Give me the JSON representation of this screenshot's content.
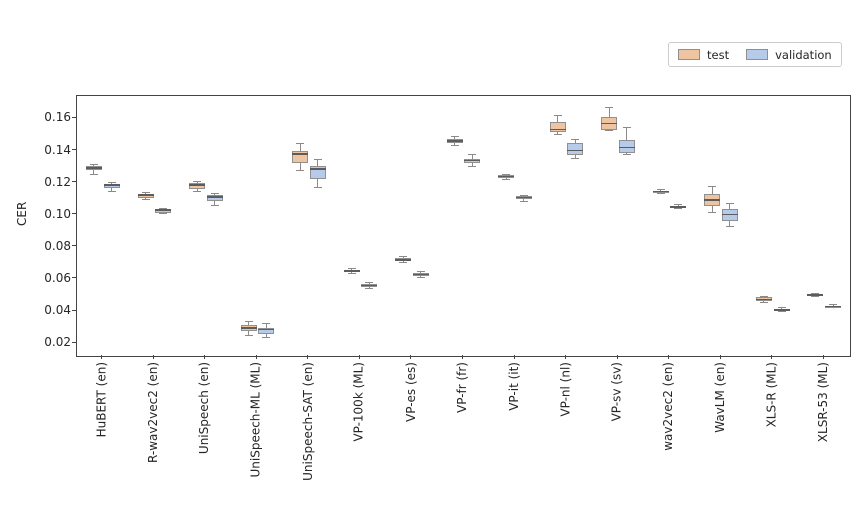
{
  "legend": {
    "items": [
      {
        "label": "test",
        "color": "#efc4a1"
      },
      {
        "label": "validation",
        "color": "#b6cbe9"
      }
    ]
  },
  "chart_data": {
    "type": "boxplot",
    "title": "",
    "xlabel": "",
    "ylabel": "CER",
    "ylim": [
      0.012,
      0.174
    ],
    "yticks": [
      0.02,
      0.04,
      0.06,
      0.08,
      0.1,
      0.12,
      0.14,
      0.16
    ],
    "grid": false,
    "legend_position": "upper right",
    "box_stats_order": [
      "whisker_low",
      "q1",
      "median",
      "q3",
      "whisker_high"
    ],
    "categories": [
      "HuBERT (en)",
      "R-wav2vec2 (en)",
      "UniSpeech (en)",
      "UniSpeech-ML (ML)",
      "UniSpeech-SAT (en)",
      "VP-100k (ML)",
      "VP-es (es)",
      "VP-fr (fr)",
      "VP-it (it)",
      "VP-nl (nl)",
      "VP-sv (sv)",
      "wav2vec2 (en)",
      "WavLM (en)",
      "XLS-R (ML)",
      "XLSR-53 (ML)"
    ],
    "series": [
      {
        "name": "test",
        "color": "#efc4a1",
        "boxes": [
          [
            0.125,
            0.128,
            0.1291,
            0.1302,
            0.1312
          ],
          [
            0.1095,
            0.1105,
            0.1123,
            0.1131,
            0.1137
          ],
          [
            0.1145,
            0.1163,
            0.1186,
            0.1197,
            0.121
          ],
          [
            0.025,
            0.0276,
            0.0296,
            0.0311,
            0.0335
          ],
          [
            0.1276,
            0.1321,
            0.138,
            0.14,
            0.1445
          ],
          [
            0.0635,
            0.0645,
            0.0651,
            0.0658,
            0.0666
          ],
          [
            0.07,
            0.0709,
            0.0719,
            0.073,
            0.074
          ],
          [
            0.1431,
            0.1448,
            0.1461,
            0.1472,
            0.1489
          ],
          [
            0.122,
            0.1229,
            0.1237,
            0.1245,
            0.1252
          ],
          [
            0.15,
            0.1518,
            0.1532,
            0.1575,
            0.1617
          ],
          [
            0.1525,
            0.1528,
            0.157,
            0.161,
            0.1666
          ],
          [
            0.113,
            0.1136,
            0.1144,
            0.1151,
            0.116
          ],
          [
            0.1012,
            0.1054,
            0.1091,
            0.113,
            0.1177
          ],
          [
            0.0455,
            0.0461,
            0.0473,
            0.0486,
            0.0492
          ],
          [
            0.049,
            0.0494,
            0.05,
            0.0505,
            0.051
          ]
        ]
      },
      {
        "name": "validation",
        "color": "#b6cbe9",
        "boxes": [
          [
            0.1142,
            0.1167,
            0.1185,
            0.1194,
            0.1201
          ],
          [
            0.1005,
            0.1012,
            0.1029,
            0.1033,
            0.104
          ],
          [
            0.106,
            0.1084,
            0.1111,
            0.1122,
            0.1132
          ],
          [
            0.0235,
            0.0259,
            0.0284,
            0.0297,
            0.0322
          ],
          [
            0.1173,
            0.1222,
            0.1285,
            0.1305,
            0.1342
          ],
          [
            0.054,
            0.0548,
            0.0558,
            0.0569,
            0.0576
          ],
          [
            0.061,
            0.0618,
            0.0628,
            0.0639,
            0.0646
          ],
          [
            0.1301,
            0.1324,
            0.1338,
            0.1349,
            0.1377
          ],
          [
            0.1084,
            0.1097,
            0.1109,
            0.1117,
            0.1123
          ],
          [
            0.1348,
            0.1373,
            0.14,
            0.1445,
            0.1472
          ],
          [
            0.1377,
            0.1383,
            0.142,
            0.1466,
            0.1542
          ],
          [
            0.1038,
            0.1043,
            0.1049,
            0.1055,
            0.1061
          ],
          [
            0.093,
            0.0961,
            0.1002,
            0.1033,
            0.1068
          ],
          [
            0.0395,
            0.0399,
            0.0406,
            0.0414,
            0.0421
          ],
          [
            0.042,
            0.0424,
            0.0429,
            0.0434,
            0.0441
          ]
        ]
      }
    ]
  },
  "style": {
    "box_edge": "#909090",
    "median_color": "#5c5c5c",
    "whisker_color": "#8a8a8a",
    "spine_color": "#444444",
    "text_color": "#262626"
  }
}
